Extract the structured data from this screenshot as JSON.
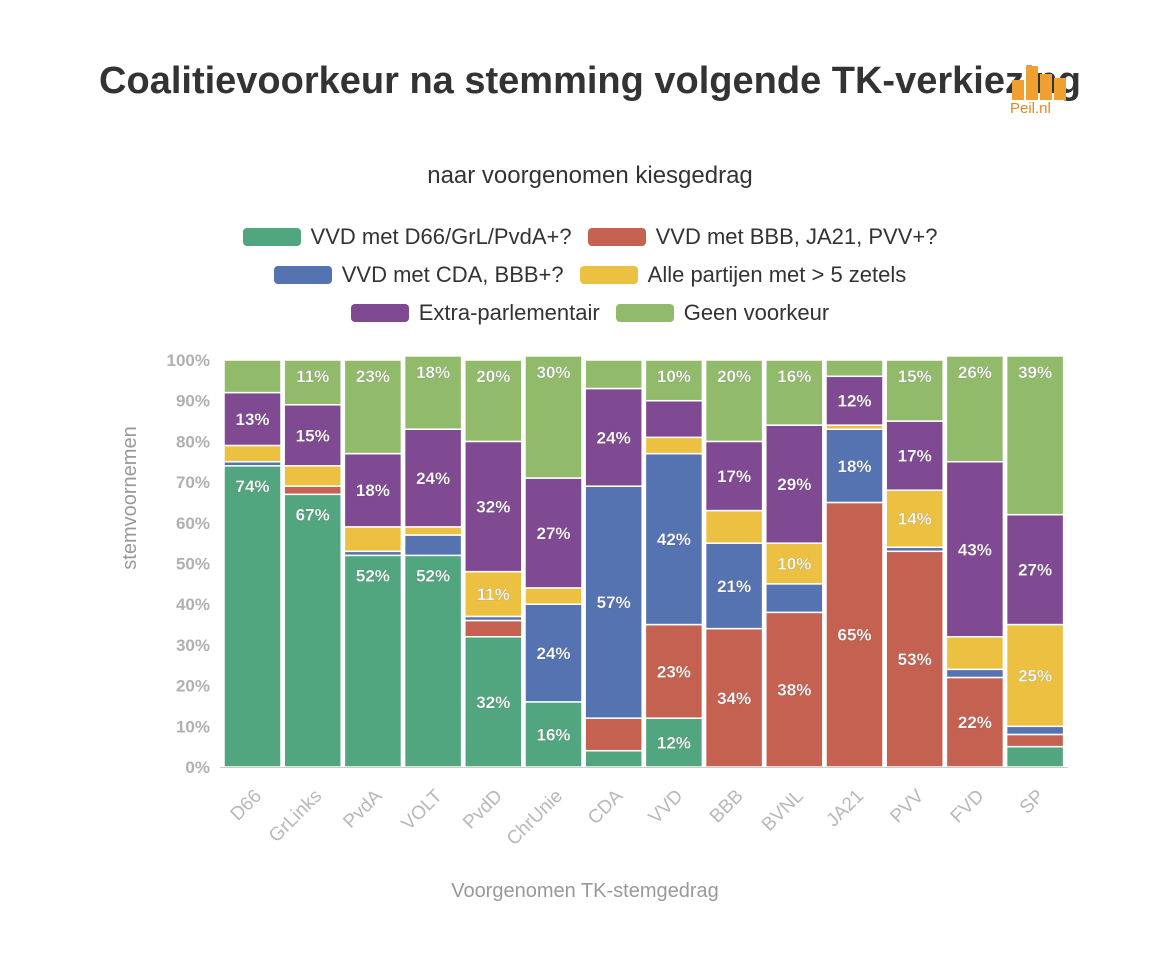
{
  "chart_data": {
    "type": "bar",
    "stacked": true,
    "title": "Coalitievoorkeur na stemming volgende TK-verkiezing",
    "subtitle": "naar voorgenomen kiesgedrag",
    "xlabel": "Voorgenomen TK-stemgedrag",
    "ylabel": "stemvoornemen",
    "ylim": [
      0,
      100
    ],
    "yticks": [
      "0%",
      "10%",
      "20%",
      "30%",
      "40%",
      "50%",
      "60%",
      "70%",
      "80%",
      "90%",
      "100%"
    ],
    "grid": false,
    "legend_position": "top",
    "categories": [
      "D66",
      "GrLinks",
      "PvdA",
      "VOLT",
      "PvdD",
      "ChrUnie",
      "CDA",
      "VVD",
      "BBB",
      "BVNL",
      "JA21",
      "PVV",
      "FVD",
      "SP"
    ],
    "series": [
      {
        "name": "VVD met D66/GrL/PvdA+?",
        "color": "#52a67f",
        "values": [
          74,
          67,
          52,
          52,
          32,
          16,
          4,
          12,
          0,
          0,
          0,
          0,
          0,
          5
        ]
      },
      {
        "name": "VVD met BBB, JA21, PVV+?",
        "color": "#c56150",
        "values": [
          0,
          2,
          0,
          0,
          4,
          0,
          8,
          23,
          34,
          38,
          65,
          53,
          22,
          3
        ]
      },
      {
        "name": "VVD met CDA, BBB+?",
        "color": "#5473b0",
        "values": [
          1,
          0,
          1,
          5,
          1,
          24,
          57,
          42,
          21,
          7,
          18,
          1,
          2,
          2
        ]
      },
      {
        "name": "Alle partijen met > 5 zetels",
        "color": "#ecc040",
        "values": [
          4,
          5,
          6,
          2,
          11,
          4,
          0,
          4,
          8,
          10,
          1,
          14,
          8,
          25
        ]
      },
      {
        "name": "Extra-parlementair",
        "color": "#7f4a92",
        "values": [
          13,
          15,
          18,
          24,
          32,
          27,
          24,
          9,
          17,
          29,
          12,
          17,
          43,
          27
        ]
      },
      {
        "name": "Geen voorkeur",
        "color": "#91bb6a",
        "values": [
          8,
          11,
          23,
          18,
          20,
          30,
          7,
          10,
          20,
          16,
          4,
          15,
          26,
          39
        ]
      }
    ],
    "data_labels": [
      {
        "category": "D66",
        "series": 0,
        "text": "74%"
      },
      {
        "category": "D66",
        "series": 4,
        "text": "13%"
      },
      {
        "category": "GrLinks",
        "series": 0,
        "text": "67%"
      },
      {
        "category": "GrLinks",
        "series": 4,
        "text": "15%"
      },
      {
        "category": "GrLinks",
        "series": 5,
        "text": "11%"
      },
      {
        "category": "PvdA",
        "series": 0,
        "text": "52%"
      },
      {
        "category": "PvdA",
        "series": 4,
        "text": "18%"
      },
      {
        "category": "PvdA",
        "series": 5,
        "text": "23%"
      },
      {
        "category": "VOLT",
        "series": 0,
        "text": "52%"
      },
      {
        "category": "VOLT",
        "series": 4,
        "text": "24%"
      },
      {
        "category": "VOLT",
        "series": 5,
        "text": "18%"
      },
      {
        "category": "PvdD",
        "series": 0,
        "text": "32%"
      },
      {
        "category": "PvdD",
        "series": 3,
        "text": "11%"
      },
      {
        "category": "PvdD",
        "series": 4,
        "text": "32%"
      },
      {
        "category": "PvdD",
        "series": 5,
        "text": "20%"
      },
      {
        "category": "ChrUnie",
        "series": 0,
        "text": "16%"
      },
      {
        "category": "ChrUnie",
        "series": 2,
        "text": "24%"
      },
      {
        "category": "ChrUnie",
        "series": 4,
        "text": "27%"
      },
      {
        "category": "ChrUnie",
        "series": 5,
        "text": "30%"
      },
      {
        "category": "CDA",
        "series": 2,
        "text": "57%"
      },
      {
        "category": "CDA",
        "series": 4,
        "text": "24%"
      },
      {
        "category": "VVD",
        "series": 0,
        "text": "12%"
      },
      {
        "category": "VVD",
        "series": 1,
        "text": "23%"
      },
      {
        "category": "VVD",
        "series": 2,
        "text": "42%"
      },
      {
        "category": "VVD",
        "series": 5,
        "text": "10%"
      },
      {
        "category": "BBB",
        "series": 1,
        "text": "34%"
      },
      {
        "category": "BBB",
        "series": 2,
        "text": "21%"
      },
      {
        "category": "BBB",
        "series": 4,
        "text": "17%"
      },
      {
        "category": "BBB",
        "series": 5,
        "text": "20%"
      },
      {
        "category": "BVNL",
        "series": 1,
        "text": "38%"
      },
      {
        "category": "BVNL",
        "series": 3,
        "text": "10%"
      },
      {
        "category": "BVNL",
        "series": 4,
        "text": "29%"
      },
      {
        "category": "BVNL",
        "series": 5,
        "text": "16%"
      },
      {
        "category": "JA21",
        "series": 1,
        "text": "65%"
      },
      {
        "category": "JA21",
        "series": 2,
        "text": "18%"
      },
      {
        "category": "JA21",
        "series": 4,
        "text": "12%"
      },
      {
        "category": "PVV",
        "series": 1,
        "text": "53%"
      },
      {
        "category": "PVV",
        "series": 3,
        "text": "14%"
      },
      {
        "category": "PVV",
        "series": 4,
        "text": "17%"
      },
      {
        "category": "PVV",
        "series": 5,
        "text": "15%"
      },
      {
        "category": "FVD",
        "series": 1,
        "text": "22%"
      },
      {
        "category": "FVD",
        "series": 4,
        "text": "43%"
      },
      {
        "category": "FVD",
        "series": 5,
        "text": "26%"
      },
      {
        "category": "SP",
        "series": 3,
        "text": "25%"
      },
      {
        "category": "SP",
        "series": 4,
        "text": "27%"
      },
      {
        "category": "SP",
        "series": 5,
        "text": "39%"
      }
    ]
  },
  "logo": {
    "text": "Peil.nl",
    "color": "#f0a030"
  }
}
